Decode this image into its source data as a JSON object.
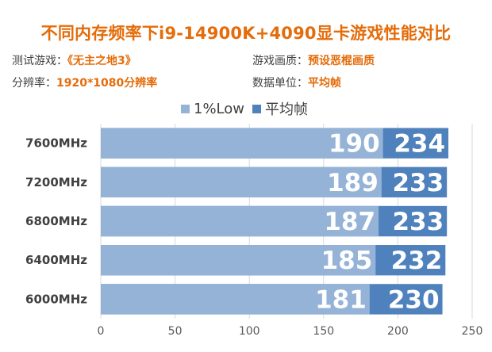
{
  "header": {
    "title": "不同内存频率下i9-14900K+4090显卡游戏性能对比",
    "test_game_label": "测试游戏：",
    "test_game_value": "《无主之地3》",
    "quality_label": "游戏画质：",
    "quality_value": "预设恶棍画质",
    "resolution_label": "分辨率：",
    "resolution_value": "1920*1080分辨率",
    "unit_label": "数据单位：",
    "unit_value": "平均帧"
  },
  "colors": {
    "accent": "#e46c0a",
    "series_low": "#95b3d7",
    "series_avg": "#4f81bd",
    "grid": "#d9d9d9"
  },
  "chart_data": {
    "type": "bar",
    "orientation": "horizontal",
    "overlapping": true,
    "categories": [
      "7600MHz",
      "7200MHz",
      "6800MHz",
      "6400MHz",
      "6000MHz"
    ],
    "series": [
      {
        "name": "1%Low",
        "values": [
          190,
          189,
          187,
          185,
          181
        ]
      },
      {
        "name": "平均帧",
        "values": [
          234,
          233,
          233,
          232,
          230
        ]
      }
    ],
    "xticks": [
      0,
      50,
      100,
      150,
      200,
      250
    ],
    "xlim": [
      0,
      250
    ],
    "grid": true,
    "legend": "top"
  }
}
